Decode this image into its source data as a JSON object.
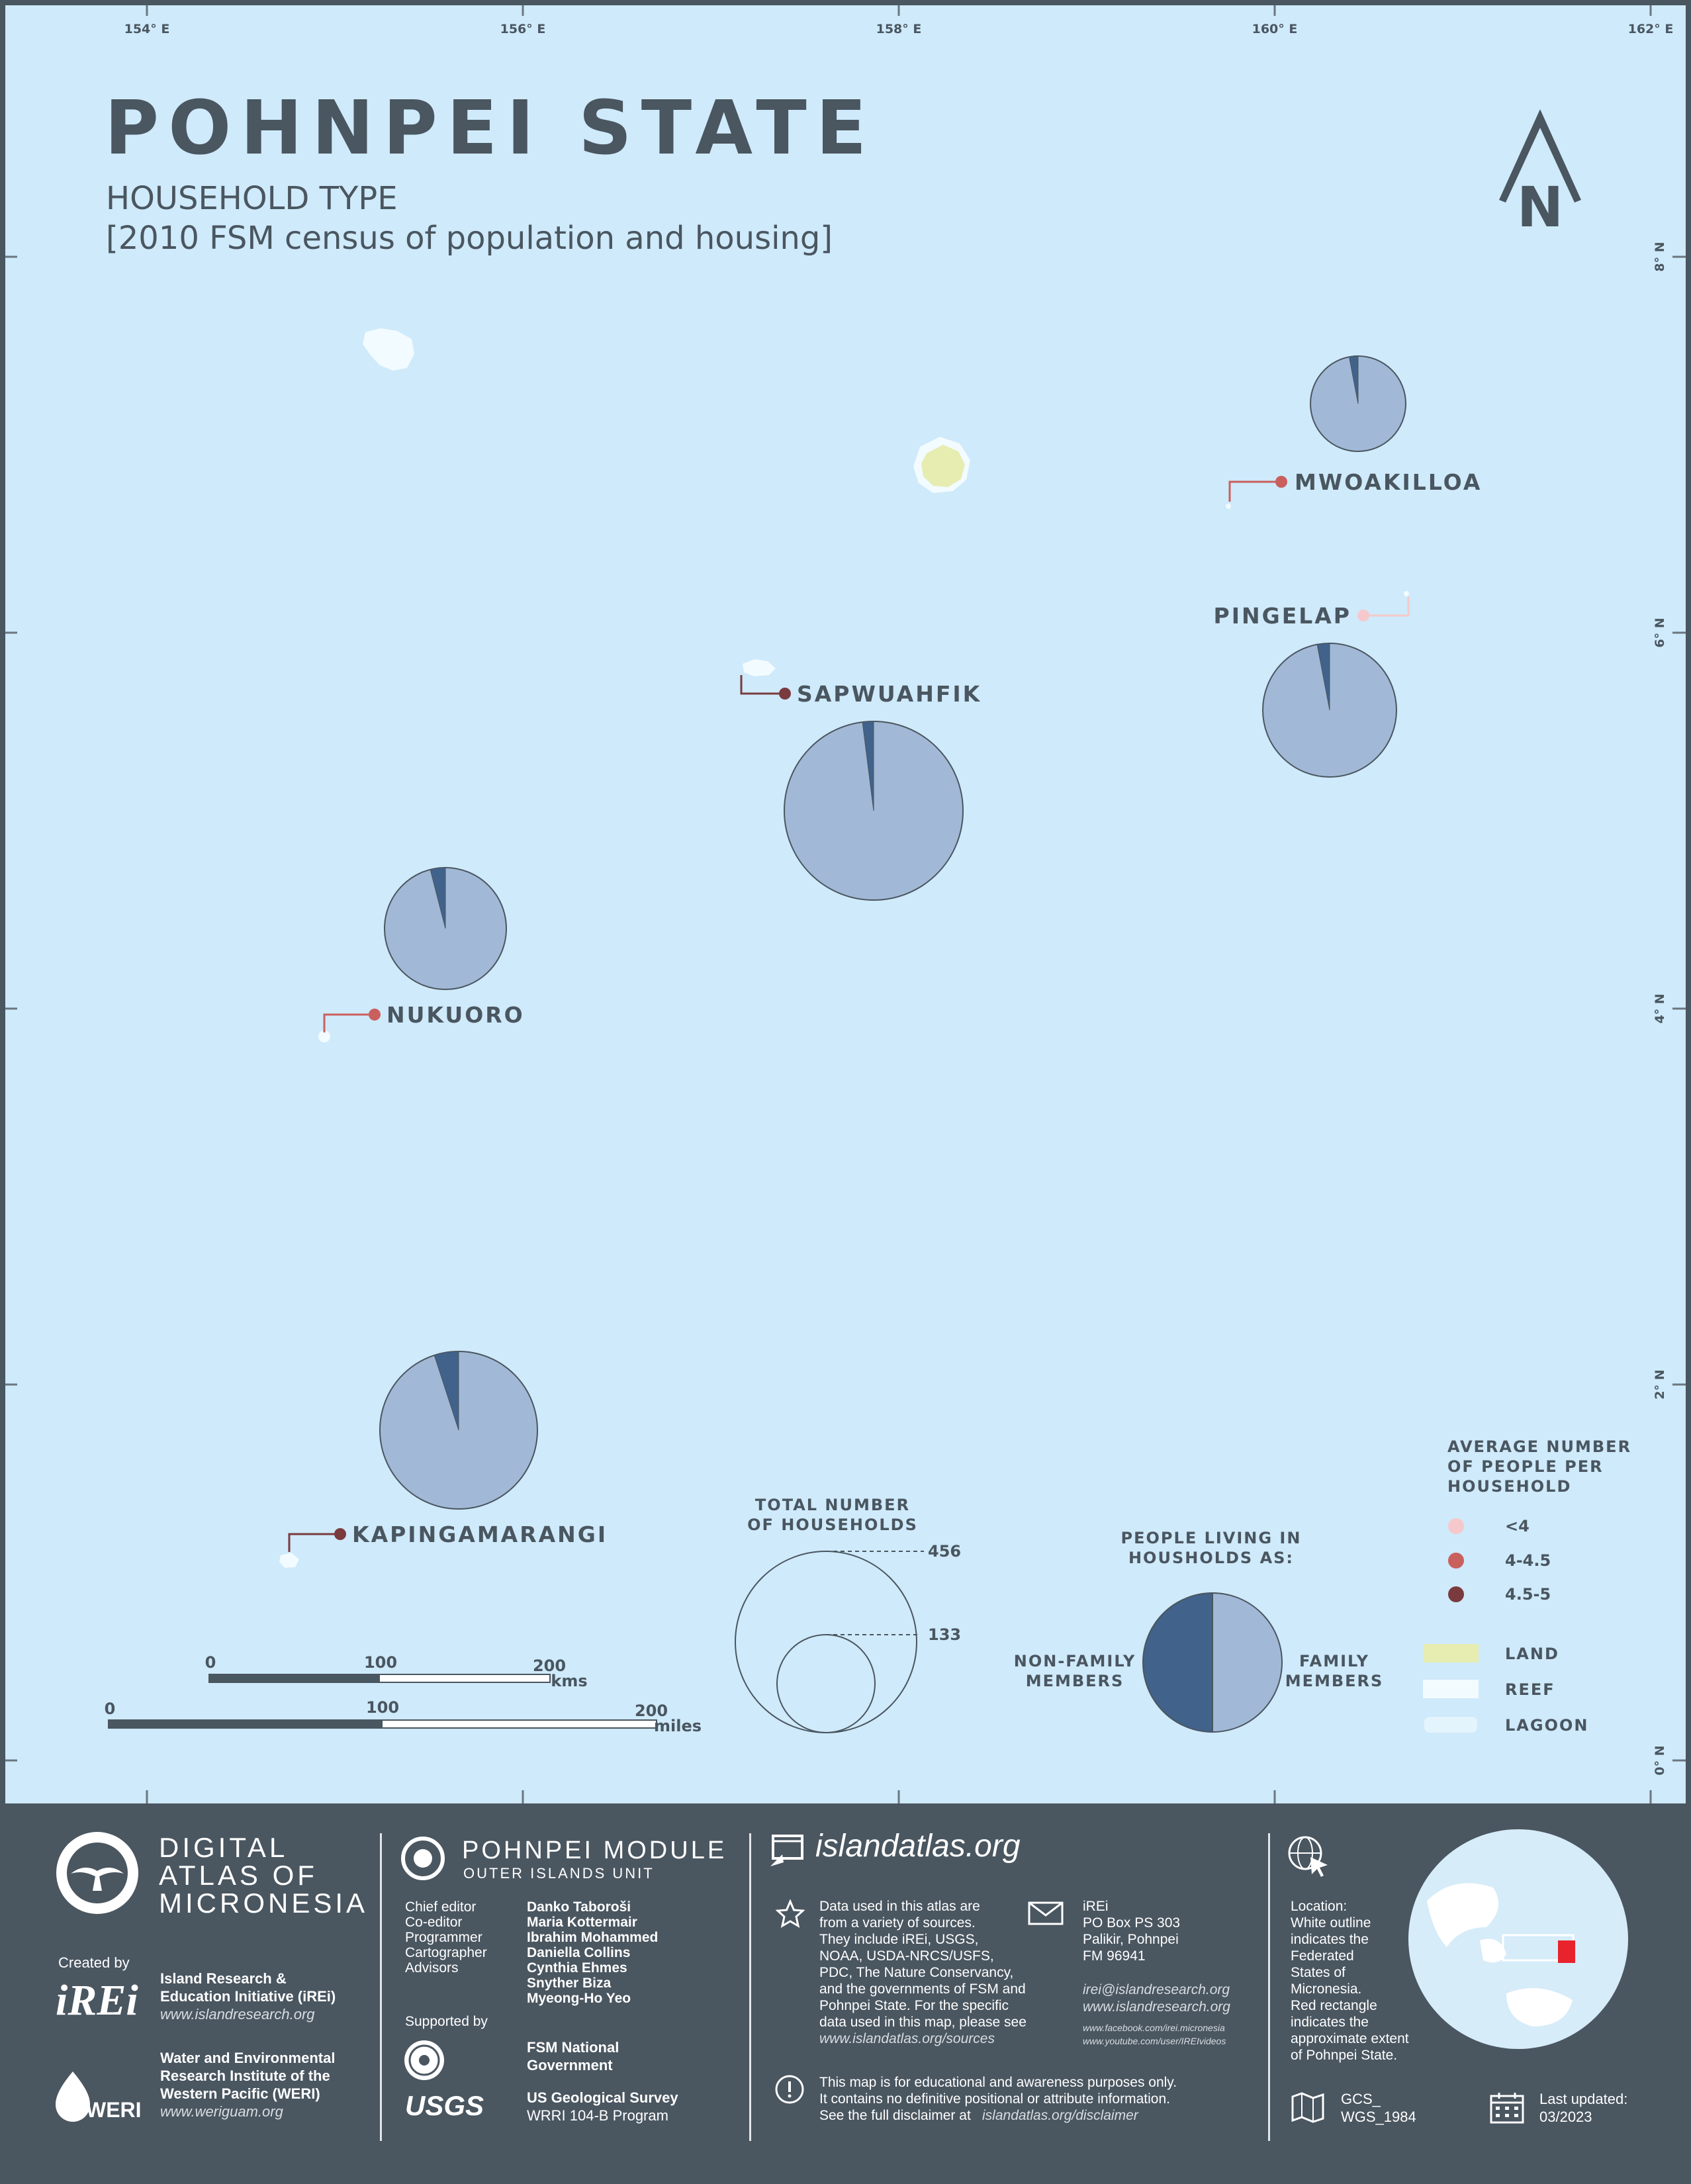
{
  "title": "POHNPEI STATE",
  "subtitle": "HOUSEHOLD TYPE",
  "source_note": "[2010 FSM census of population and housing]",
  "graticule": {
    "lon_labels": [
      "154° E",
      "156° E",
      "158° E",
      "160° E",
      "162° E"
    ],
    "lat_labels": [
      "8° N",
      "6° N",
      "4° N",
      "2° N",
      "0° N"
    ]
  },
  "north_arrow_letter": "N",
  "colors": {
    "ocean": "#cfeafa",
    "family_members": "#a1b9d6",
    "non_family_members": "#41628a",
    "land": "#e7ecb0",
    "reef": "#f2fbff",
    "avg_lt4": "#f5c9cc",
    "avg_4_45": "#c9605e",
    "avg_45_5": "#7a3b3e",
    "footer_bg": "#4a5660"
  },
  "islands": [
    {
      "name": "MWOAKILLOA",
      "avg_people_class": "4-4.5",
      "non_family_share": 0.03
    },
    {
      "name": "PINGELAP",
      "avg_people_class": "<4",
      "non_family_share": 0.03
    },
    {
      "name": "SAPWUAHFIK",
      "avg_people_class": "4.5-5",
      "non_family_share": 0.02
    },
    {
      "name": "NUKUORO",
      "avg_people_class": "4-4.5",
      "non_family_share": 0.04
    },
    {
      "name": "KAPINGAMARANGI",
      "avg_people_class": "4.5-5",
      "non_family_share": 0.05
    }
  ],
  "legend": {
    "total_households_title_1": "TOTAL NUMBER",
    "total_households_title_2": "OF HOUSEHOLDS",
    "size_values": [
      "456",
      "133"
    ],
    "people_title_1": "PEOPLE LIVING IN",
    "people_title_2": "HOUSHOLDS AS:",
    "non_family_1": "NON-FAMILY",
    "non_family_2": "MEMBERS",
    "family_1": "FAMILY",
    "family_2": "MEMBERS",
    "avg_title_1": "AVERAGE NUMBER",
    "avg_title_2": "OF PEOPLE PER",
    "avg_title_3": "HOUSEHOLD",
    "avg_classes": [
      "<4",
      "4-4.5",
      "4.5-5"
    ],
    "land": "LAND",
    "reef": "REEF",
    "lagoon": "LAGOON"
  },
  "scale": {
    "km_labels": [
      "0",
      "100",
      "200"
    ],
    "km_unit": "kms",
    "mi_labels": [
      "0",
      "100",
      "200"
    ],
    "mi_unit": "miles"
  },
  "footer": {
    "atlas_1": "DIGITAL",
    "atlas_2": "ATLAS OF",
    "atlas_3": "MICRONESIA",
    "created_by": "Created by",
    "irei_logo": "iREi",
    "irei_name_1": "Island Research &",
    "irei_name_2": "Education Initiative (iREi)",
    "irei_url": "www.islandresearch.org",
    "weri_logo": "WERI",
    "weri_name_1": "Water and Environmental",
    "weri_name_2": "Research Institute of the",
    "weri_name_3": "Western Pacific (WERI)",
    "weri_url": "www.weriguam.org",
    "module_title": "POHNPEI MODULE",
    "module_sub": "OUTER ISLANDS UNIT",
    "roles": "Chief editor\nCo-editor\nProgrammer\nCartographer\nAdvisors",
    "names": "Danko Taboroši\nMaria Kottermair\nIbrahim Mohammed\nDaniella Collins\nCynthia Ehmes\nSnyther Biza\nMyeong-Ho Yeo",
    "supported_by": "Supported by",
    "fsm_1": "FSM National",
    "fsm_2": "Government",
    "usgs_logo": "USGS",
    "usgs_1": "US Geological Survey",
    "usgs_2": "WRRI 104-B Program",
    "site": "islandatlas.org",
    "sources_text": "Data used in this atlas are\nfrom a variety of sources.\nThey include iREi, USGS,\nNOAA, USDA-NRCS/USFS,\nPDC, The Nature Conservancy,\nand the governments of FSM and\nPohnpei State. For the specific\ndata used in this map, please see",
    "sources_url": "www.islandatlas.org/sources",
    "contact": "iREi\nPO Box PS 303\nPalikir, Pohnpei\nFM 96941",
    "contact_email": "irei@islandresearch.org",
    "contact_web": "www.islandresearch.org",
    "facebook": "www.facebook.com/irei.micronesia",
    "youtube": "www.youtube.com/user/IREIvideos",
    "disclaimer": "This map is for educational and awareness purposes only.\nIt contains no definitive positional or attribute information.\nSee the full disclaimer at",
    "disclaimer_url": "islandatlas.org/disclaimer",
    "location_text": "Location:\nWhite outline\nindicates the\nFederated\nStates of\nMicronesia.\nRed rectangle\nindicates the\napproximate extent\nof Pohnpei State.",
    "gcs_1": "GCS_",
    "gcs_2": "WGS_1984",
    "updated_1": "Last updated:",
    "updated_2": "03/2023"
  }
}
